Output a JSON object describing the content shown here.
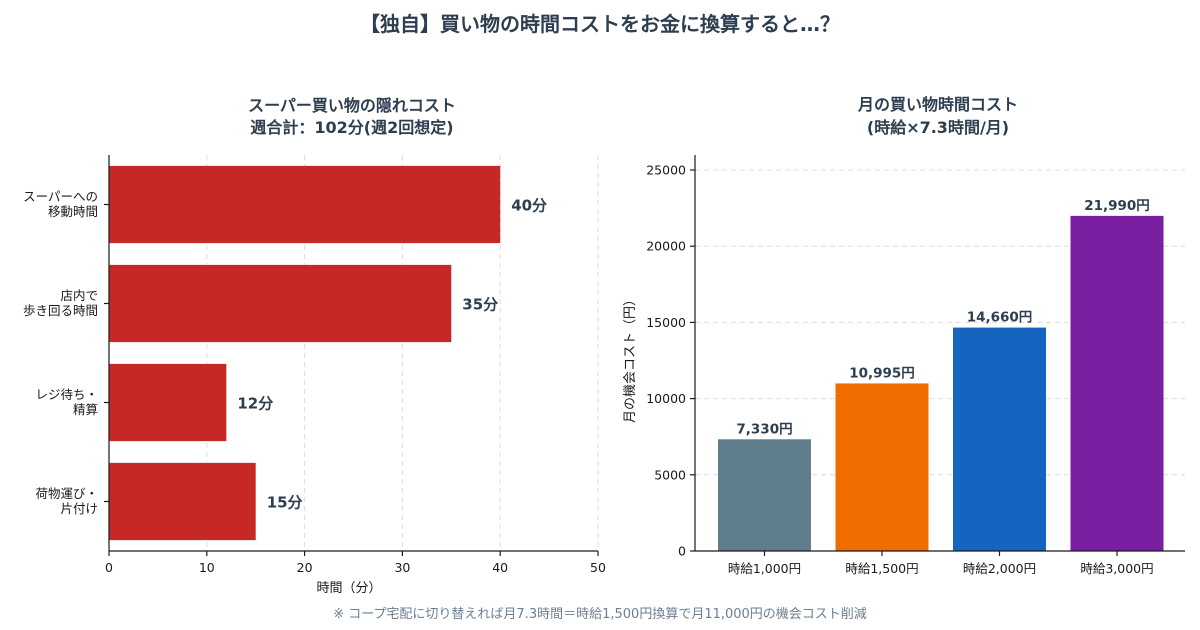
{
  "title": "【独自】買い物の時間コストをお金に換算すると…？",
  "footnote": "※ コープ宅配に切り替えれば月7.3時間＝時給1,500円換算で月11,000円の機会コスト削減",
  "chart_data": [
    {
      "type": "bar",
      "orientation": "horizontal",
      "title": "スーパー買い物の隠れコスト",
      "subtitle": "週合計：102分(週2回想定)",
      "xlabel": "時間（分）",
      "ylabel": "",
      "xlim": [
        0,
        50
      ],
      "xticks": [
        "0",
        "10",
        "20",
        "30",
        "40",
        "50"
      ],
      "categories": [
        [
          "スーパーへの",
          "移動時間"
        ],
        [
          "店内で",
          "歩き回る時間"
        ],
        [
          "レジ待ち・",
          "精算"
        ],
        [
          "荷物運び・",
          "片付け"
        ]
      ],
      "values": [
        40,
        35,
        12,
        15
      ],
      "value_labels": [
        "40分",
        "35分",
        "12分",
        "15分"
      ],
      "color": "#c62828",
      "grid": "vertical dashed"
    },
    {
      "type": "bar",
      "title": "月の買い物時間コスト",
      "subtitle": "(時給×7.3時間/月)",
      "xlabel": "",
      "ylabel": "月の機会コスト（円）",
      "ylim": [
        0,
        26000
      ],
      "yticks": [
        "0",
        "5000",
        "10000",
        "15000",
        "20000",
        "25000"
      ],
      "categories": [
        "時給1,000円",
        "時給1,500円",
        "時給2,000円",
        "時給3,000円"
      ],
      "values": [
        7330,
        10995,
        14660,
        21990
      ],
      "value_labels": [
        "7,330円",
        "10,995円",
        "14,660円",
        "21,990円"
      ],
      "colors": [
        "#607d8b",
        "#ef6c00",
        "#1565c0",
        "#7b1fa2"
      ],
      "grid": "horizontal dashed"
    }
  ]
}
